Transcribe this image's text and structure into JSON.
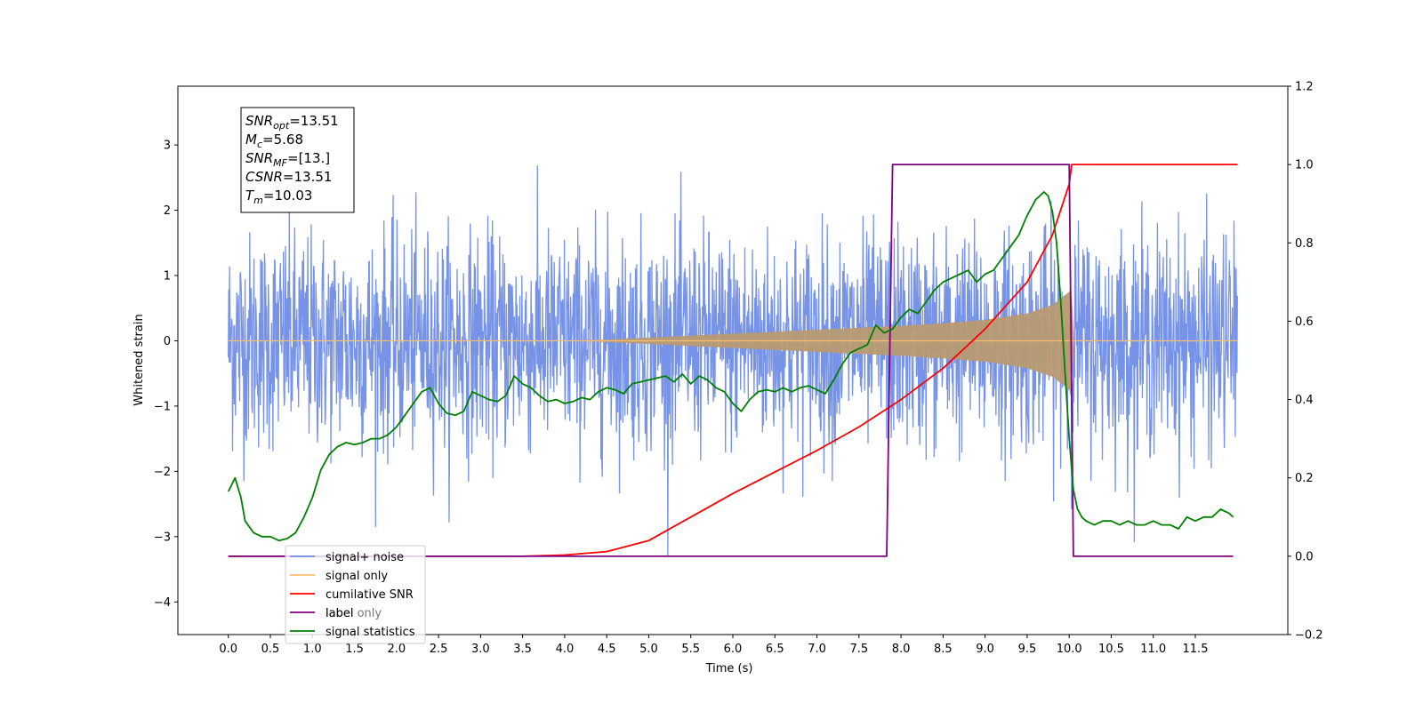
{
  "chart_data": {
    "type": "line",
    "xlabel": "Time (s)",
    "ylabel": "Whitened strain",
    "xlim": [
      -0.6,
      12.6
    ],
    "ylim": [
      -4.5,
      3.9
    ],
    "ylim_right": [
      -0.2,
      1.2
    ],
    "x_ticks": [
      "0.0",
      "0.5",
      "1.0",
      "1.5",
      "2.0",
      "2.5",
      "3.0",
      "3.5",
      "4.0",
      "4.5",
      "5.0",
      "5.5",
      "6.0",
      "6.5",
      "7.0",
      "7.5",
      "8.0",
      "8.5",
      "9.0",
      "9.5",
      "10.0",
      "10.5",
      "11.0",
      "11.5"
    ],
    "y_ticks_left": [
      "3",
      "2",
      "1",
      "0",
      "−1",
      "−2",
      "−3",
      "−4"
    ],
    "y_ticks_right": [
      "1.2",
      "1.0",
      "0.8",
      "0.6",
      "0.4",
      "0.2",
      "0.0",
      "−0.2"
    ],
    "legend": [
      {
        "label": "signal+ noise",
        "color": "#6f8de6"
      },
      {
        "label": "signal only",
        "color": "#ffbf70"
      },
      {
        "label": "cumilative SNR",
        "color": "#ff0000"
      },
      {
        "label": "label",
        "color": "#800080"
      },
      {
        "label": "signal statistics",
        "color": "#008000"
      }
    ],
    "legend_hidden_labels": [
      "label only"
    ],
    "legend_location": "lower-left",
    "annotation": [
      {
        "main": "SNR",
        "sub": "opt",
        "value": "=13.51"
      },
      {
        "main": "M",
        "sub": "c",
        "value": "=5.68"
      },
      {
        "main": "SNR",
        "sub": "MF",
        "value": "=[13.]"
      },
      {
        "main": "CSNR",
        "sub": "",
        "value": "=13.51"
      },
      {
        "main": "T",
        "sub": "m",
        "value": "=10.03"
      }
    ],
    "series": [
      {
        "name": "signal+ noise",
        "axis": "left",
        "color": "#6f8de6",
        "x_range": [
          0.0,
          12.0
        ],
        "typical_range": [
          -2.4,
          2.4
        ],
        "extreme_range": [
          -4.1,
          3.55
        ]
      },
      {
        "name": "signal only",
        "axis": "left",
        "color": "#ffbf70",
        "x": [
          0.0,
          4.0,
          4.5,
          5.0,
          5.5,
          6.0,
          6.5,
          7.0,
          7.5,
          8.0,
          8.5,
          9.0,
          9.5,
          9.8,
          10.0,
          10.03,
          10.05,
          12.0
        ],
        "y": [
          0.0,
          0.0,
          0.02,
          0.05,
          0.08,
          0.11,
          0.14,
          0.17,
          0.2,
          0.23,
          0.27,
          0.32,
          0.42,
          0.55,
          0.75,
          0.9,
          0.0,
          0.0
        ]
      },
      {
        "name": "cumilative SNR",
        "axis": "right",
        "color": "#ff0000",
        "x": [
          0.0,
          3.5,
          4.0,
          4.5,
          5.0,
          5.5,
          6.0,
          6.5,
          7.0,
          7.5,
          8.0,
          8.5,
          9.0,
          9.5,
          9.8,
          10.0,
          10.03,
          12.0
        ],
        "y": [
          0.0,
          0.0,
          0.003,
          0.012,
          0.04,
          0.1,
          0.16,
          0.215,
          0.27,
          0.33,
          0.4,
          0.48,
          0.58,
          0.7,
          0.82,
          0.95,
          1.0,
          1.0
        ]
      },
      {
        "name": "label",
        "axis": "right",
        "color": "#800080",
        "x": [
          0.0,
          7.83,
          7.9,
          10.0,
          10.05,
          11.95
        ],
        "y": [
          0.0,
          0.0,
          1.0,
          1.0,
          0.0,
          0.0
        ]
      },
      {
        "name": "signal statistics",
        "axis": "right",
        "color": "#008000",
        "x": [
          0.0,
          0.08,
          0.15,
          0.2,
          0.3,
          0.4,
          0.5,
          0.6,
          0.7,
          0.8,
          0.9,
          1.0,
          1.1,
          1.2,
          1.3,
          1.4,
          1.5,
          1.6,
          1.7,
          1.8,
          1.9,
          2.0,
          2.1,
          2.2,
          2.3,
          2.4,
          2.5,
          2.6,
          2.7,
          2.8,
          2.9,
          3.0,
          3.1,
          3.2,
          3.3,
          3.4,
          3.5,
          3.6,
          3.7,
          3.8,
          3.9,
          4.0,
          4.1,
          4.2,
          4.3,
          4.4,
          4.5,
          4.6,
          4.7,
          4.8,
          4.9,
          5.0,
          5.1,
          5.2,
          5.3,
          5.4,
          5.5,
          5.6,
          5.7,
          5.8,
          5.9,
          6.0,
          6.1,
          6.2,
          6.3,
          6.4,
          6.5,
          6.6,
          6.7,
          6.8,
          6.9,
          7.0,
          7.1,
          7.2,
          7.3,
          7.4,
          7.5,
          7.6,
          7.7,
          7.8,
          7.9,
          8.0,
          8.1,
          8.2,
          8.3,
          8.4,
          8.5,
          8.6,
          8.7,
          8.8,
          8.9,
          9.0,
          9.1,
          9.2,
          9.3,
          9.4,
          9.5,
          9.6,
          9.7,
          9.75,
          9.8,
          9.85,
          9.9,
          9.95,
          10.0,
          10.05,
          10.1,
          10.15,
          10.2,
          10.3,
          10.4,
          10.5,
          10.6,
          10.7,
          10.8,
          10.9,
          11.0,
          11.1,
          11.2,
          11.3,
          11.4,
          11.5,
          11.6,
          11.7,
          11.8,
          11.9,
          11.95
        ],
        "y": [
          0.165,
          0.2,
          0.15,
          0.09,
          0.06,
          0.05,
          0.05,
          0.04,
          0.045,
          0.06,
          0.1,
          0.15,
          0.22,
          0.26,
          0.28,
          0.29,
          0.285,
          0.29,
          0.3,
          0.3,
          0.31,
          0.33,
          0.36,
          0.39,
          0.42,
          0.43,
          0.39,
          0.365,
          0.36,
          0.37,
          0.42,
          0.41,
          0.4,
          0.395,
          0.41,
          0.46,
          0.44,
          0.43,
          0.41,
          0.395,
          0.4,
          0.39,
          0.395,
          0.405,
          0.4,
          0.42,
          0.43,
          0.425,
          0.415,
          0.44,
          0.445,
          0.45,
          0.455,
          0.46,
          0.445,
          0.465,
          0.44,
          0.46,
          0.45,
          0.43,
          0.42,
          0.39,
          0.37,
          0.4,
          0.42,
          0.425,
          0.42,
          0.43,
          0.42,
          0.43,
          0.435,
          0.425,
          0.415,
          0.45,
          0.49,
          0.52,
          0.53,
          0.54,
          0.59,
          0.57,
          0.58,
          0.61,
          0.63,
          0.62,
          0.65,
          0.68,
          0.7,
          0.71,
          0.72,
          0.73,
          0.7,
          0.72,
          0.73,
          0.76,
          0.79,
          0.82,
          0.87,
          0.91,
          0.93,
          0.92,
          0.88,
          0.8,
          0.65,
          0.47,
          0.3,
          0.17,
          0.12,
          0.1,
          0.09,
          0.08,
          0.09,
          0.09,
          0.08,
          0.09,
          0.08,
          0.08,
          0.09,
          0.08,
          0.08,
          0.07,
          0.1,
          0.09,
          0.1,
          0.1,
          0.12,
          0.11,
          0.1
        ]
      }
    ]
  }
}
